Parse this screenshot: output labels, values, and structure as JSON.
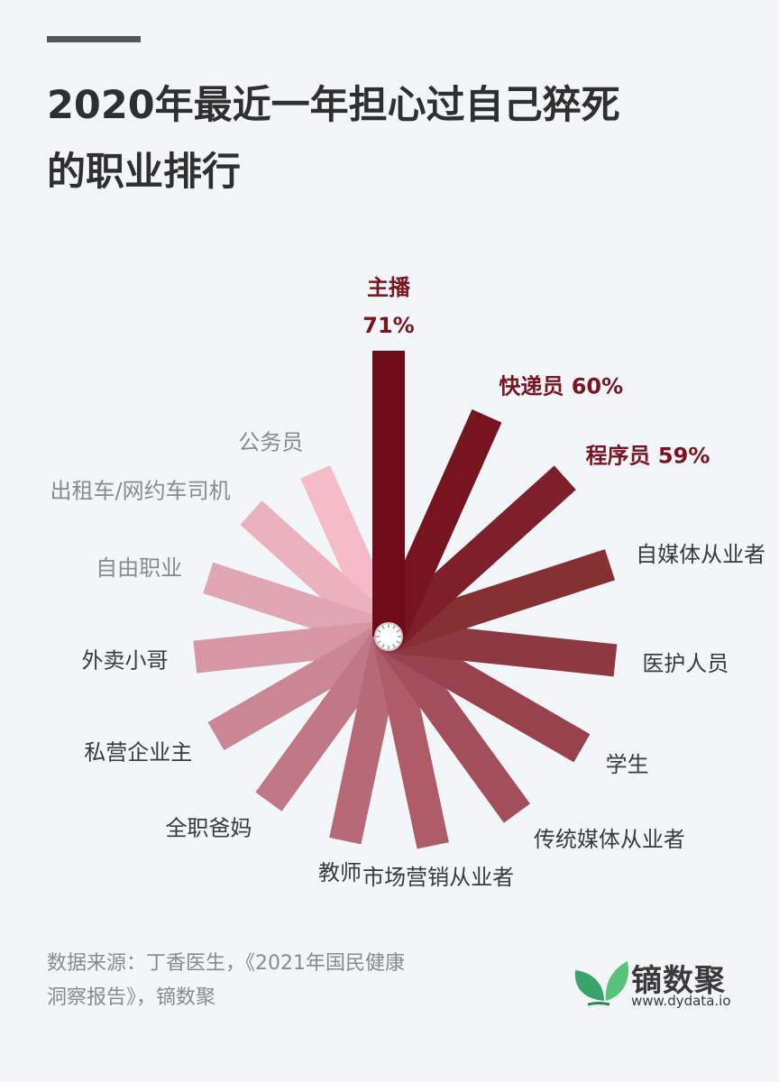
{
  "title": {
    "line1": "2020年最近一年担心过自己猝死",
    "line2": "的职业排行"
  },
  "chart_data": {
    "type": "bar",
    "layout": "radial",
    "title": "2020年最近一年担心过自己猝死的职业排行",
    "categories": [
      "主播",
      "快递员",
      "程序员",
      "自媒体从业者",
      "医护人员",
      "学生",
      "传统媒体从业者",
      "市场营销从业者",
      "教师",
      "全职爸妈",
      "私营企业主",
      "外卖小哥",
      "自由职业",
      "出租车/网约车司机",
      "公务员"
    ],
    "values": [
      71,
      60,
      59,
      null,
      null,
      null,
      null,
      null,
      null,
      null,
      null,
      null,
      null,
      null,
      null
    ],
    "value_labels": [
      "71%",
      "60%",
      "59%",
      "",
      "",
      "",
      "",
      "",
      "",
      "",
      "",
      "",
      "",
      "",
      ""
    ],
    "colors": [
      "#6e0c19",
      "#76151f",
      "#7e1f29",
      "#853033",
      "#8e3842",
      "#99424e",
      "#a34f5b",
      "#ae5c68",
      "#b76a76",
      "#c17886",
      "#cb8693",
      "#d696a3",
      "#e0a6b3",
      "#eab1be",
      "#f5bcc8"
    ],
    "label_colors": [
      "#7a1420",
      "#7a1420",
      "#7a1420",
      "#3a3a3a",
      "#3a3a3a",
      "#3a3a3a",
      "#3a3a3a",
      "#3a3a3a",
      "#3a3a3a",
      "#3a3a3a",
      "#3a3a3a",
      "#3a3a3a",
      "#8a8a8a",
      "#8a8a8a",
      "#8a8a8a"
    ]
  },
  "source": {
    "line1": "数据来源：丁香医生，《2021年国民健康",
    "line2": "洞察报告》，镝数聚"
  },
  "logo": {
    "name": "镝数聚",
    "url": "www.dydata.io"
  }
}
